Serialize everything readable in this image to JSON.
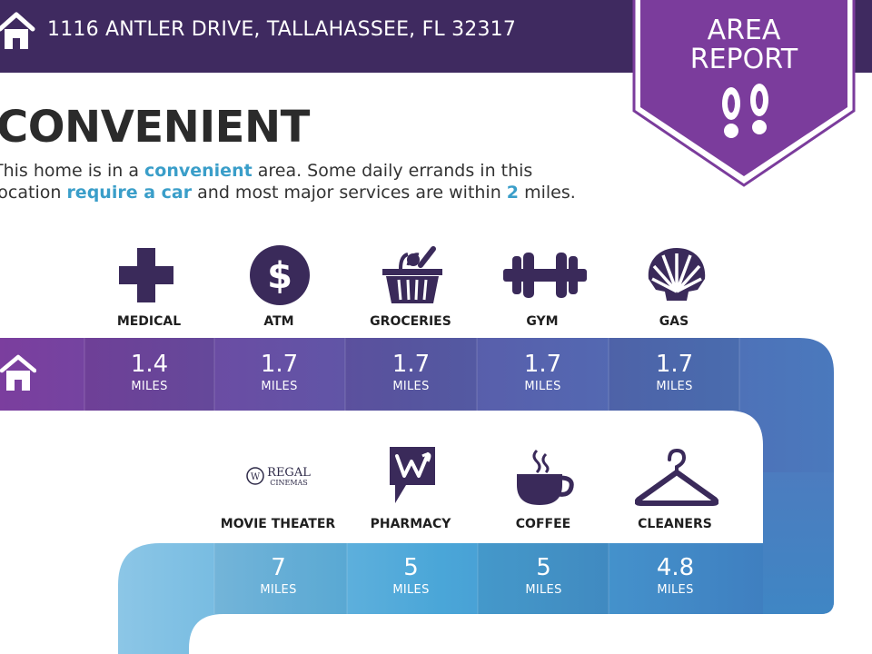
{
  "header": {
    "address": "1116 ANTLER DRIVE, TALLAHASSEE, FL 32317"
  },
  "badge": {
    "line1": "AREA",
    "line2": "REPORT"
  },
  "headline": "CONVENIENT",
  "description": {
    "t1": "This home is in a ",
    "h1": "convenient",
    "t2": " area. Some daily errands in this",
    "t3": "location ",
    "h2": "require a car",
    "t4": " and most major services are within ",
    "h3": "2",
    "t5": " miles."
  },
  "row1": [
    {
      "label": "MEDICAL",
      "value": "1.4",
      "unit": "MILES",
      "icon": "medical-cross-icon"
    },
    {
      "label": "ATM",
      "value": "1.7",
      "unit": "MILES",
      "icon": "dollar-coin-icon"
    },
    {
      "label": "GROCERIES",
      "value": "1.7",
      "unit": "MILES",
      "icon": "grocery-basket-icon"
    },
    {
      "label": "GYM",
      "value": "1.7",
      "unit": "MILES",
      "icon": "dumbbell-icon"
    },
    {
      "label": "GAS",
      "value": "1.7",
      "unit": "MILES",
      "icon": "shell-icon"
    }
  ],
  "row2": [
    {
      "label": "MOVIE THEATER",
      "value": "7",
      "unit": "MILES",
      "icon": "regal-cinemas-logo"
    },
    {
      "label": "PHARMACY",
      "value": "5",
      "unit": "MILES",
      "icon": "walgreens-logo"
    },
    {
      "label": "COFFEE",
      "value": "5",
      "unit": "MILES",
      "icon": "coffee-cup-icon"
    },
    {
      "label": "CLEANERS",
      "value": "4.8",
      "unit": "MILES",
      "icon": "hanger-icon"
    }
  ],
  "logos": {
    "regal_line1": "REGAL",
    "regal_line2": "CINEMAS",
    "regal_mark": "W"
  },
  "colors": {
    "header": "#3f2a60",
    "badge": "#7b3c9c",
    "accent": "#3a9ec9",
    "icon": "#3a2a5a"
  }
}
